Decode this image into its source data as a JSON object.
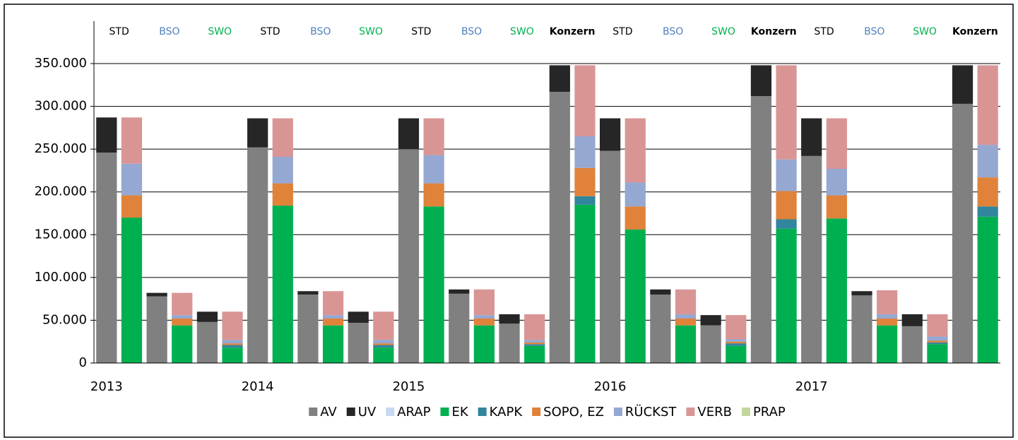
{
  "chart_data": {
    "type": "stacked_bar",
    "categories": [
      "2013",
      null,
      null,
      null,
      null,
      null,
      "2014",
      null,
      null,
      null,
      null,
      null,
      "2015",
      null,
      null,
      null,
      null,
      null,
      null,
      null,
      "2016",
      null,
      null,
      null,
      null,
      null,
      null,
      null,
      "2017",
      null,
      null,
      null,
      null,
      null,
      null,
      null
    ],
    "groups": [
      "STD",
      "BSO",
      "SWO",
      "STD",
      "BSO",
      "SWO",
      "STD",
      "BSO",
      "SWO",
      "Konzern",
      "STD",
      "BSO",
      "SWO",
      "Konzern",
      "STD",
      "BSO",
      "SWO",
      "Konzern"
    ],
    "group_colors": {
      "STD": "#000000",
      "BSO": "#4f81bd",
      "SWO": "#00b050",
      "Konzern": "#000000"
    },
    "group_bold": [
      "Konzern"
    ],
    "series": [
      {
        "name": "AV",
        "color": "#808080",
        "values": [
          246000,
          null,
          78000,
          null,
          48000,
          null,
          252000,
          null,
          80000,
          null,
          47000,
          null,
          250000,
          null,
          81000,
          null,
          46000,
          null,
          317000,
          null,
          248000,
          null,
          80000,
          null,
          44000,
          null,
          312000,
          null,
          242000,
          null,
          79000,
          null,
          43000,
          null,
          303000,
          null
        ]
      },
      {
        "name": "UV",
        "color": "#262626",
        "values": [
          41000,
          null,
          4000,
          null,
          12000,
          null,
          34000,
          null,
          4000,
          null,
          13000,
          null,
          36000,
          null,
          5000,
          null,
          11000,
          null,
          31000,
          null,
          38000,
          null,
          6000,
          null,
          12000,
          null,
          36000,
          null,
          44000,
          null,
          5000,
          null,
          14000,
          null,
          45000,
          null
        ]
      },
      {
        "name": "ARAP",
        "color": "#c6d9f1",
        "values": [
          0,
          null,
          0,
          null,
          0,
          null,
          0,
          null,
          0,
          null,
          0,
          null,
          0,
          null,
          0,
          null,
          0,
          null,
          0,
          null,
          0,
          null,
          0,
          null,
          0,
          null,
          0,
          null,
          0,
          null,
          0,
          null,
          0,
          null,
          0,
          null
        ]
      },
      {
        "name": "EK",
        "color": "#00b050",
        "values": [
          null,
          170000,
          null,
          44000,
          null,
          18000,
          null,
          184000,
          null,
          44000,
          null,
          18000,
          null,
          183000,
          null,
          44000,
          null,
          20000,
          null,
          185000,
          null,
          156000,
          null,
          44000,
          null,
          20000,
          null,
          157000,
          null,
          169000,
          null,
          44000,
          null,
          22000,
          null,
          171000
        ]
      },
      {
        "name": "KAPK",
        "color": "#31859c",
        "values": [
          null,
          0,
          null,
          0,
          null,
          3000,
          null,
          0,
          null,
          0,
          null,
          3000,
          null,
          0,
          null,
          0,
          null,
          2000,
          null,
          10000,
          null,
          0,
          null,
          0,
          null,
          3000,
          null,
          11000,
          null,
          0,
          null,
          0,
          null,
          2000,
          null,
          12000
        ]
      },
      {
        "name": "SOPO, EZ",
        "color": "#e0823a",
        "values": [
          null,
          26000,
          null,
          8000,
          null,
          2000,
          null,
          26000,
          null,
          8000,
          null,
          2000,
          null,
          27000,
          null,
          8000,
          null,
          2000,
          null,
          33000,
          null,
          27000,
          null,
          8000,
          null,
          2000,
          null,
          33000,
          null,
          27000,
          null,
          8000,
          null,
          2000,
          null,
          34000
        ]
      },
      {
        "name": "RÜCKST",
        "color": "#95a8d2",
        "values": [
          null,
          37000,
          null,
          4000,
          null,
          4000,
          null,
          31000,
          null,
          4000,
          null,
          4000,
          null,
          33000,
          null,
          4000,
          null,
          3000,
          null,
          37000,
          null,
          28000,
          null,
          5000,
          null,
          3000,
          null,
          37000,
          null,
          31000,
          null,
          5000,
          null,
          5000,
          null,
          38000
        ]
      },
      {
        "name": "VERB",
        "color": "#d99594",
        "values": [
          null,
          54000,
          null,
          26000,
          null,
          33000,
          null,
          45000,
          null,
          28000,
          null,
          33000,
          null,
          43000,
          null,
          30000,
          null,
          30000,
          null,
          83000,
          null,
          75000,
          null,
          29000,
          null,
          28000,
          null,
          110000,
          null,
          59000,
          null,
          28000,
          null,
          26000,
          null,
          93000
        ]
      },
      {
        "name": "PRAP",
        "color": "#c3d69b",
        "values": [
          null,
          0,
          null,
          0,
          null,
          0,
          null,
          0,
          null,
          0,
          null,
          0,
          null,
          0,
          null,
          0,
          null,
          0,
          null,
          0,
          null,
          0,
          null,
          0,
          null,
          0,
          null,
          0,
          null,
          0,
          null,
          0,
          null,
          0,
          null,
          0
        ]
      }
    ],
    "ylim": [
      0,
      350000
    ],
    "yticks": [
      0,
      {
        "value": 50000,
        "label": "50.000"
      },
      {
        "value": 100000,
        "label": "100.000"
      },
      {
        "value": 150000,
        "label": "150.000"
      },
      {
        "value": 200000,
        "label": "200.000"
      },
      {
        "value": 250000,
        "label": "250.000"
      },
      {
        "value": 300000,
        "label": "300.000"
      },
      {
        "value": 350000,
        "label": "350.000"
      }
    ],
    "grid": true
  }
}
